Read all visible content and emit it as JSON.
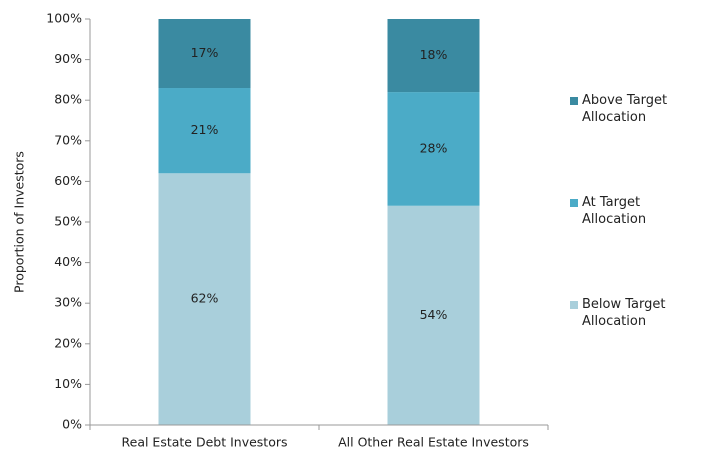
{
  "chart_data": {
    "type": "stacked_bar",
    "y_label": "Proportion of Investors",
    "categories": [
      "Real Estate Debt Investors",
      "All Other Real Estate Investors"
    ],
    "series": [
      {
        "name": "Below Target Allocation",
        "color": "#a9cfdb",
        "values": [
          62,
          54
        ],
        "value_labels": [
          "62%",
          "54%"
        ]
      },
      {
        "name": "At Target Allocation",
        "color": "#4babc7",
        "values": [
          21,
          28
        ],
        "value_labels": [
          "21%",
          "28%"
        ]
      },
      {
        "name": "Above Target Allocation",
        "color": "#3a8aa1",
        "values": [
          17,
          18
        ],
        "value_labels": [
          "17%",
          "18%"
        ]
      }
    ],
    "ylim": [
      0,
      100
    ],
    "yticks": [
      {
        "value": 0,
        "label": "0%"
      },
      {
        "value": 10,
        "label": "10%"
      },
      {
        "value": 20,
        "label": "20%"
      },
      {
        "value": 30,
        "label": "30%"
      },
      {
        "value": 40,
        "label": "40%"
      },
      {
        "value": 50,
        "label": "50%"
      },
      {
        "value": 60,
        "label": "60%"
      },
      {
        "value": 70,
        "label": "70%"
      },
      {
        "value": 80,
        "label": "80%"
      },
      {
        "value": 90,
        "label": "90%"
      },
      {
        "value": 100,
        "label": "100%"
      }
    ],
    "legend": "right"
  }
}
